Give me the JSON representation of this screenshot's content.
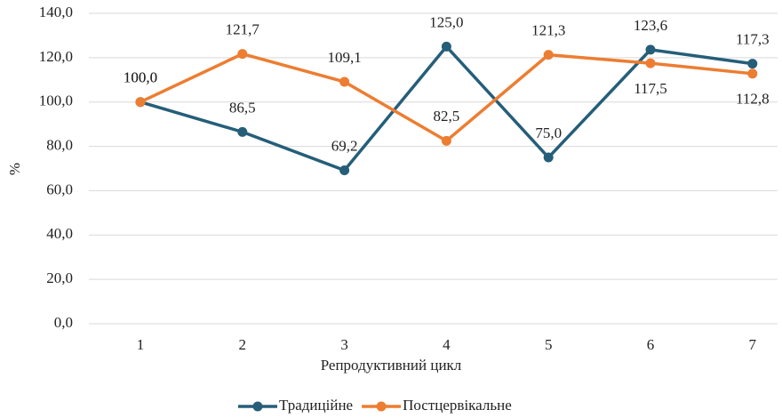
{
  "chart_data": {
    "type": "line",
    "x_label": "Репродуктивний цикл",
    "y_label": "%",
    "categories": [
      "1",
      "2",
      "3",
      "4",
      "5",
      "6",
      "7"
    ],
    "series": [
      {
        "name": "Традиційне",
        "color": "#255e79",
        "values": [
          100,
          86.5,
          69.2,
          125,
          75,
          123.6,
          117.3
        ],
        "value_labels": [
          "100,0",
          "86,5",
          "69,2",
          "125,0",
          "75,0",
          "123,6",
          "117,3"
        ]
      },
      {
        "name": "Постцервікальне",
        "color": "#ed7d31",
        "values": [
          100,
          121.7,
          109.1,
          82.5,
          121.3,
          117.5,
          112.8
        ],
        "value_labels": [
          "100,0",
          "121,7",
          "109,1",
          "82,5",
          "121,3",
          "117,5",
          "112,8"
        ]
      }
    ],
    "ylim": [
      0,
      140
    ],
    "yticks": [
      {
        "value": 0,
        "label": "0,0"
      },
      {
        "value": 20,
        "label": "20,0"
      },
      {
        "value": 40,
        "label": "40,0"
      },
      {
        "value": 60,
        "label": "60,0"
      },
      {
        "value": 80,
        "label": "80,0"
      },
      {
        "value": 100,
        "label": "100,0"
      },
      {
        "value": 120,
        "label": "120,0"
      },
      {
        "value": 140,
        "label": "140,0"
      }
    ],
    "grid": true,
    "legend": "bottom"
  }
}
